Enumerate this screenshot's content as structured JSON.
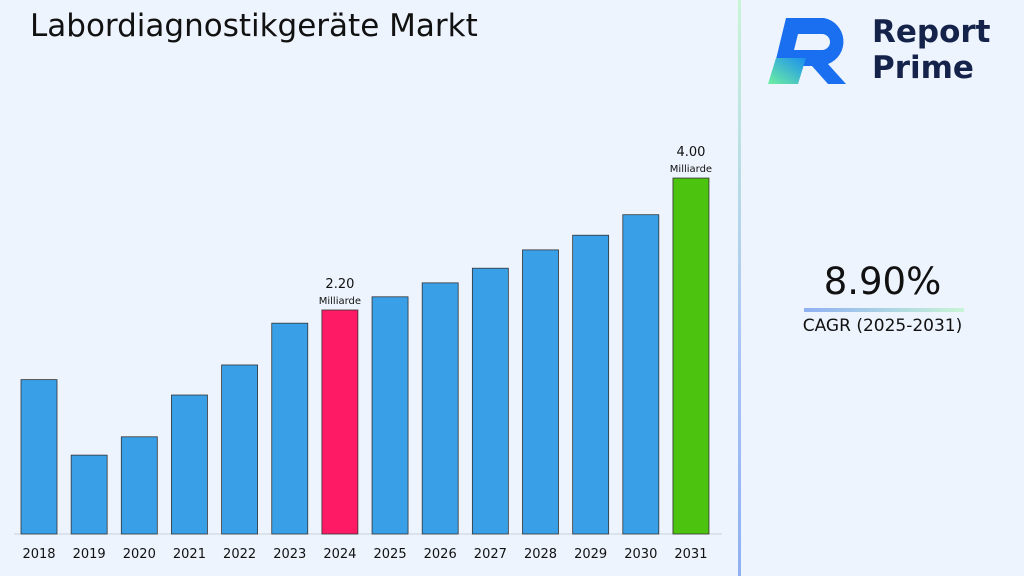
{
  "title": "Labordiagnostikgeräte Markt",
  "brand": {
    "name_line1": "Report",
    "name_line2": "Prime"
  },
  "cagr": {
    "value": "8.90%",
    "label": "CAGR (2025-2031)"
  },
  "chart_data": {
    "type": "bar",
    "title": "Labordiagnostikgeräte Markt",
    "categories": [
      "2018",
      "2019",
      "2020",
      "2021",
      "2022",
      "2023",
      "2024",
      "2025",
      "2026",
      "2027",
      "2028",
      "2029",
      "2030",
      "2031"
    ],
    "values": [
      1.25,
      0.22,
      0.47,
      1.04,
      1.45,
      2.02,
      2.2,
      2.38,
      2.57,
      2.77,
      3.02,
      3.22,
      3.5,
      4.0
    ],
    "colors": [
      "#39a0e8",
      "#39a0e8",
      "#39a0e8",
      "#39a0e8",
      "#39a0e8",
      "#39a0e8",
      "#fe1a64",
      "#39a0e8",
      "#39a0e8",
      "#39a0e8",
      "#39a0e8",
      "#39a0e8",
      "#39a0e8",
      "#4cc30f"
    ],
    "annotations": [
      {
        "category": "2024",
        "value": "2.20",
        "unit": "Milliarde"
      },
      {
        "category": "2031",
        "value": "4.00",
        "unit": "Milliarde"
      }
    ],
    "xlabel": "",
    "ylabel": "",
    "grid": false
  }
}
